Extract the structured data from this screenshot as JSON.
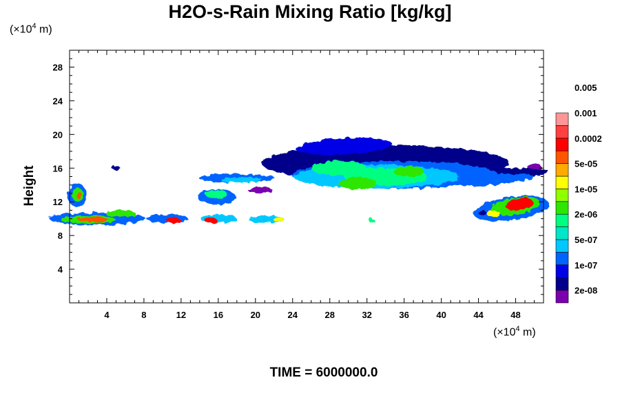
{
  "chart_data": {
    "type": "heatmap",
    "title": "H2O-s-Rain Mixing Ratio [kg/kg]",
    "xunit": "(×10",
    "xunit_exp": "4",
    "xunit_tail": " m)",
    "yunit": "(×10",
    "yunit_exp": "4",
    "yunit_tail": " m)",
    "ylabel": "Height",
    "xlim": [
      0,
      51
    ],
    "ylim": [
      0,
      30
    ],
    "xticks": [
      4,
      8,
      12,
      16,
      20,
      24,
      28,
      32,
      36,
      40,
      44,
      48
    ],
    "yticks": [
      4,
      8,
      12,
      16,
      20,
      24,
      28
    ],
    "colorbar": {
      "colors": [
        "#7a00b0",
        "#00008a",
        "#0000e6",
        "#0064ff",
        "#00c8ff",
        "#00e6c8",
        "#00ff80",
        "#2ee600",
        "#90ff00",
        "#ffff00",
        "#ffaa00",
        "#ff5500",
        "#ff0000",
        "#ff4040",
        "#ff9696"
      ],
      "labels": [
        "2e-08",
        "1e-07",
        "5e-07",
        "2e-06",
        "1e-05",
        "5e-05",
        "0.0002",
        "0.001",
        "0.005"
      ]
    },
    "footer": "TIME = 6000000.0"
  }
}
